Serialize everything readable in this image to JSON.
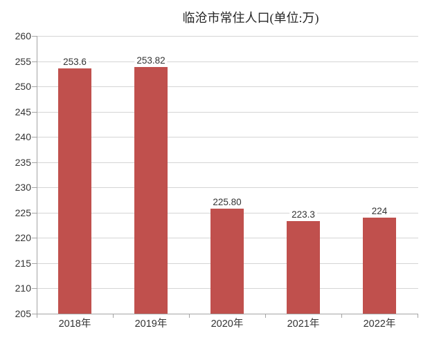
{
  "chart_data": {
    "type": "bar",
    "title": "临沧市常住人口(单位:万)",
    "categories": [
      "2018年",
      "2019年",
      "2020年",
      "2021年",
      "2022年"
    ],
    "values": [
      253.6,
      253.82,
      225.8,
      223.3,
      224
    ],
    "value_labels": [
      "253.6",
      "253.82",
      "225.80",
      "223.3",
      "224"
    ],
    "xlabel": "",
    "ylabel": "",
    "ylim": [
      205,
      260
    ],
    "ytick_step": 5,
    "yticks": [
      205,
      210,
      215,
      220,
      225,
      230,
      235,
      240,
      245,
      250,
      255,
      260
    ],
    "grid": "horizontal",
    "legend": "none",
    "colors": {
      "bar": "#C0504D",
      "gridline": "#D4D4D4",
      "axis": "#A3A3A3",
      "label_text": "#333333",
      "title_text": "#262626",
      "background": "#FFFFFF"
    }
  }
}
